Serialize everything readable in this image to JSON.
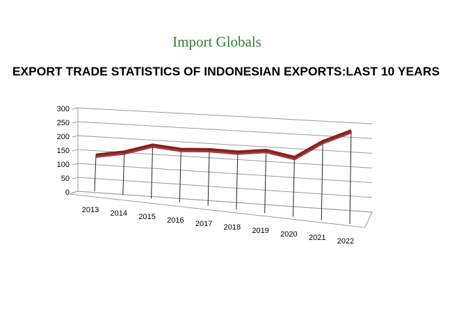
{
  "chart_data": {
    "type": "line3d",
    "logo": "Import Globals",
    "title": "EXPORT TRADE STATISTICS OF INDONESIAN EXPORTS:LAST 10 YEARS",
    "categories": [
      "2013",
      "2014",
      "2015",
      "2016",
      "2017",
      "2018",
      "2019",
      "2020",
      "2021",
      "2022"
    ],
    "values": [
      125,
      140,
      165,
      155,
      157,
      153,
      160,
      145,
      185,
      210
    ],
    "color": "#8b1e1e",
    "ylim": [
      0,
      300
    ],
    "yticks": [
      0,
      50,
      100,
      150,
      200,
      250,
      300
    ],
    "grid": true
  }
}
